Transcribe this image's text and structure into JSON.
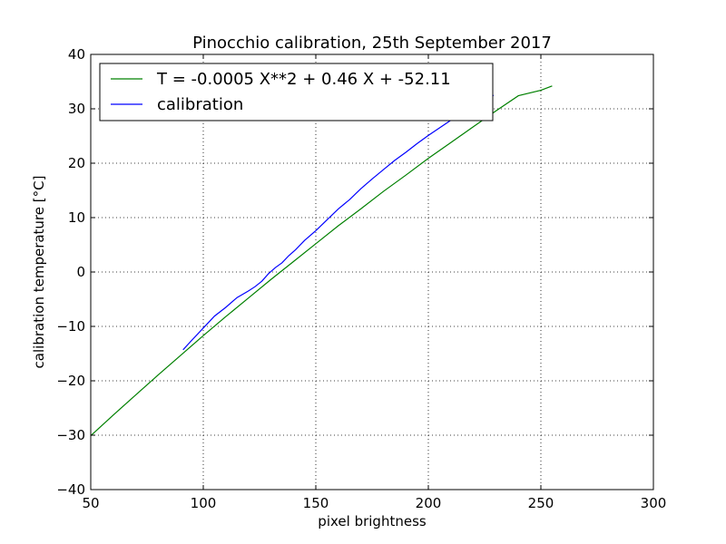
{
  "chart_data": {
    "type": "line",
    "title": "Pinocchio calibration, 25th September 2017",
    "xlabel": "pixel brightness",
    "ylabel": "calibration temperature [°C]",
    "xlim": [
      50,
      300
    ],
    "ylim": [
      -40,
      40
    ],
    "xticks": [
      50,
      100,
      150,
      200,
      250,
      300
    ],
    "yticks": [
      -40,
      -30,
      -20,
      -10,
      0,
      10,
      20,
      30,
      40
    ],
    "xtick_labels": [
      "50",
      "100",
      "150",
      "200",
      "250",
      "300"
    ],
    "ytick_labels": [
      "−40",
      "−30",
      "−20",
      "−10",
      "0",
      "10",
      "20",
      "30",
      "40"
    ],
    "grid": true,
    "legend_position": "top-left",
    "series": [
      {
        "name": "T = -0.0005 X**2 + 0.46 X + -52.11",
        "color": "#008000",
        "x": [
          50,
          60,
          70,
          80,
          90,
          100,
          110,
          120,
          130,
          140,
          150,
          160,
          170,
          180,
          190,
          200,
          210,
          220,
          230,
          240,
          250,
          255
        ],
        "y": [
          -30.1,
          -26.3,
          -22.6,
          -18.9,
          -15.3,
          -11.7,
          -8.2,
          -4.8,
          -1.4,
          1.9,
          5.2,
          8.5,
          11.6,
          14.8,
          17.8,
          20.9,
          23.8,
          26.7,
          29.6,
          32.4,
          33.4,
          34.2
        ]
      },
      {
        "name": "calibration",
        "color": "#0000ff",
        "x": [
          91,
          95,
          100,
          105,
          110,
          115,
          120,
          123,
          126,
          129,
          132,
          135,
          138,
          141,
          145,
          150,
          155,
          160,
          165,
          170,
          175,
          180,
          185,
          190,
          195,
          200,
          205,
          210,
          215,
          220,
          225,
          229
        ],
        "y": [
          -14.3,
          -12.5,
          -10.3,
          -8.1,
          -6.5,
          -4.7,
          -3.5,
          -2.7,
          -1.7,
          -0.3,
          0.8,
          1.7,
          3.0,
          4.1,
          5.8,
          7.6,
          9.6,
          11.6,
          13.3,
          15.3,
          17.1,
          18.8,
          20.5,
          22.0,
          23.6,
          25.1,
          26.5,
          27.9,
          29.2,
          30.4,
          31.5,
          32.5
        ]
      }
    ]
  }
}
